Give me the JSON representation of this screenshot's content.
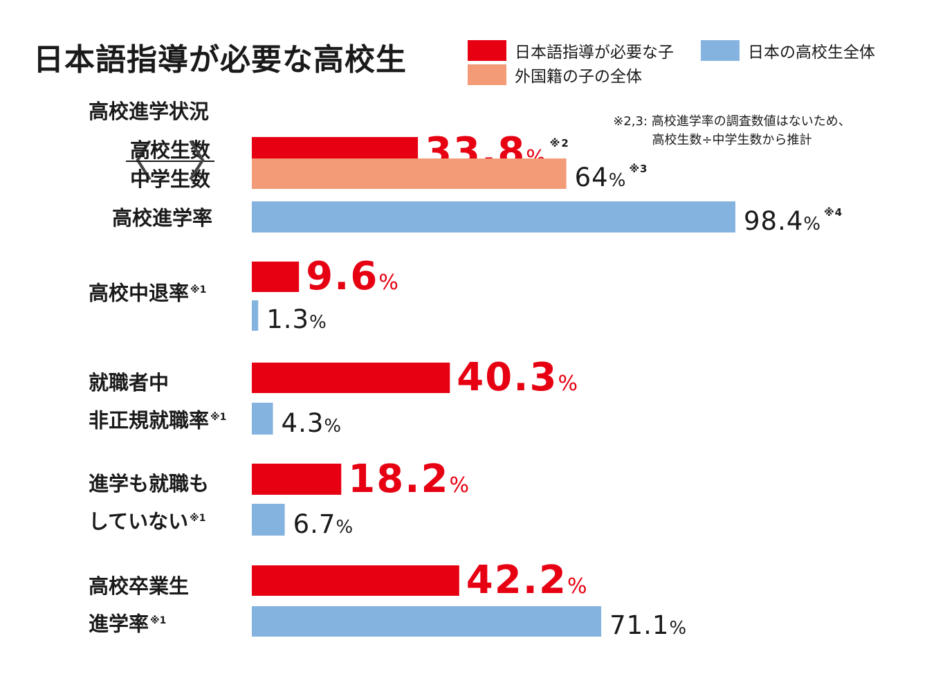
{
  "title": "日本語指導が必要な高校生",
  "legend": [
    {
      "label": "日本語指導が必要な子",
      "color": "#e60012"
    },
    {
      "label": "日本の高校生全体",
      "color": "#85b3e0"
    },
    {
      "label": "外国籍の子の全体",
      "color": "#f29b76"
    }
  ],
  "note": {
    "line1": "※2,3: 高校進学率の調査数値はないため、",
    "line2": "高校生数÷中学生数から推計"
  },
  "categories": {
    "entrance_status": "高校進学状況",
    "fraction_numerator": "高校生数",
    "fraction_denominator": "中学生数",
    "entrance_rate": "高校進学率",
    "dropout_rate": "高校中退率",
    "employed_line1": "就職者中",
    "employed_line2": "非正規就職率",
    "neither_line1": "進学も就職も",
    "neither_line2": "していない",
    "grad_line1": "高校卒業生",
    "grad_line2": "進学率"
  },
  "footnote_marks": {
    "m1": "※1",
    "m2": "※2",
    "m3": "※3",
    "m4": "※4"
  },
  "chart_data": {
    "type": "bar",
    "orientation": "horizontal",
    "unit": "%",
    "xlim": [
      0,
      100
    ],
    "bars": [
      {
        "group": "高校進学状況",
        "series": "日本語指導が必要な子",
        "value": 33.8,
        "value_label": "33.8",
        "footnote": "※2",
        "color": "#e60012"
      },
      {
        "group": "高校進学状況",
        "series": "外国籍の子の全体",
        "value": 64,
        "value_label": "64",
        "footnote": "※3",
        "color": "#f29b76"
      },
      {
        "group": "高校進学率",
        "series": "日本の高校生全体",
        "value": 98.4,
        "value_label": "98.4",
        "footnote": "※4",
        "color": "#85b3e0"
      },
      {
        "group": "高校中退率",
        "series": "日本語指導が必要な子",
        "value": 9.6,
        "value_label": "9.6",
        "footnote": "",
        "color": "#e60012"
      },
      {
        "group": "高校中退率",
        "series": "日本の高校生全体",
        "value": 1.3,
        "value_label": "1.3",
        "footnote": "",
        "color": "#85b3e0"
      },
      {
        "group": "就職者中非正規就職率",
        "series": "日本語指導が必要な子",
        "value": 40.3,
        "value_label": "40.3",
        "footnote": "",
        "color": "#e60012"
      },
      {
        "group": "就職者中非正規就職率",
        "series": "日本の高校生全体",
        "value": 4.3,
        "value_label": "4.3",
        "footnote": "",
        "color": "#85b3e0"
      },
      {
        "group": "進学も就職もしていない",
        "series": "日本語指導が必要な子",
        "value": 18.2,
        "value_label": "18.2",
        "footnote": "",
        "color": "#e60012"
      },
      {
        "group": "進学も就職もしていない",
        "series": "日本の高校生全体",
        "value": 6.7,
        "value_label": "6.7",
        "footnote": "",
        "color": "#85b3e0"
      },
      {
        "group": "高校卒業生進学率",
        "series": "日本語指導が必要な子",
        "value": 42.2,
        "value_label": "42.2",
        "footnote": "",
        "color": "#e60012"
      },
      {
        "group": "高校卒業生進学率",
        "series": "日本の高校生全体",
        "value": 71.1,
        "value_label": "71.1",
        "footnote": "",
        "color": "#85b3e0"
      }
    ]
  }
}
